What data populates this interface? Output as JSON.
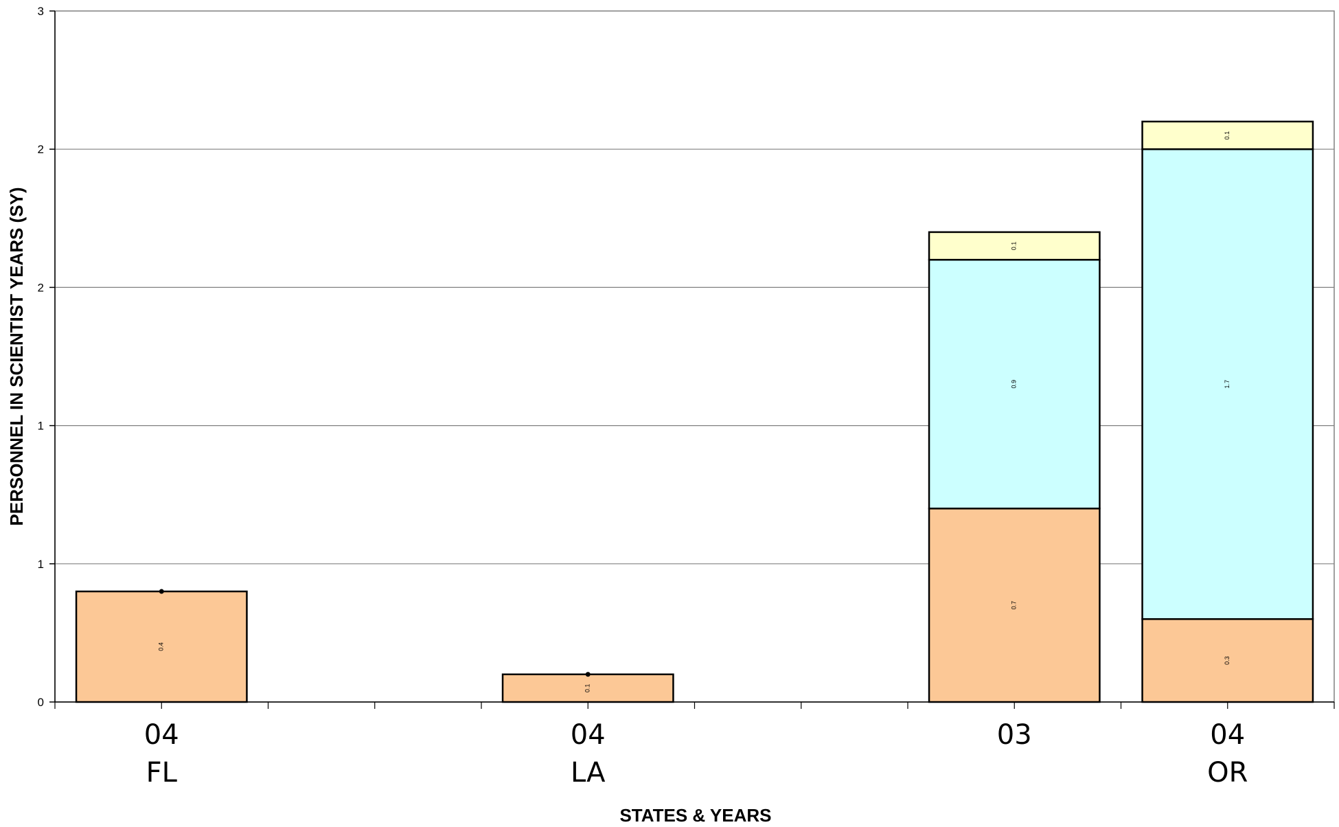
{
  "chart_data": {
    "type": "bar",
    "stacked": true,
    "title": "",
    "xlabel": "STATES & YEARS",
    "ylabel": "PERSONNEL IN SCIENTIST YEARS (SY)",
    "y_tick_labels": [
      "0",
      "1",
      "1",
      "2",
      "2",
      "3"
    ],
    "y_tick_values": [
      0,
      0.5,
      1.0,
      1.5,
      2.0,
      2.5
    ],
    "ylim": [
      0,
      2.5
    ],
    "grid": true,
    "legend": "none",
    "slots": 6,
    "categories": [
      {
        "slot": 0,
        "year": "04",
        "state": "FL"
      },
      {
        "slot": 2,
        "year": "04",
        "state": "LA"
      },
      {
        "slot": 4,
        "year": "03",
        "state": ""
      },
      {
        "slot": 5,
        "year": "04",
        "state": "OR"
      }
    ],
    "series": [
      {
        "color": "#FCC896",
        "values": [
          0.4,
          0.1,
          0.7,
          0.3
        ],
        "labels": [
          "0.4",
          "0.1",
          "0.7",
          "0.3"
        ]
      },
      {
        "color": "#CCFFFF",
        "values": [
          0,
          0,
          0.9,
          1.7
        ],
        "labels": [
          "",
          "",
          "0.9",
          "1.7"
        ]
      },
      {
        "color": "#FFFFCC",
        "values": [
          0,
          0,
          0.1,
          0.1
        ],
        "labels": [
          "",
          "",
          "0.1",
          "0.1"
        ]
      }
    ]
  }
}
